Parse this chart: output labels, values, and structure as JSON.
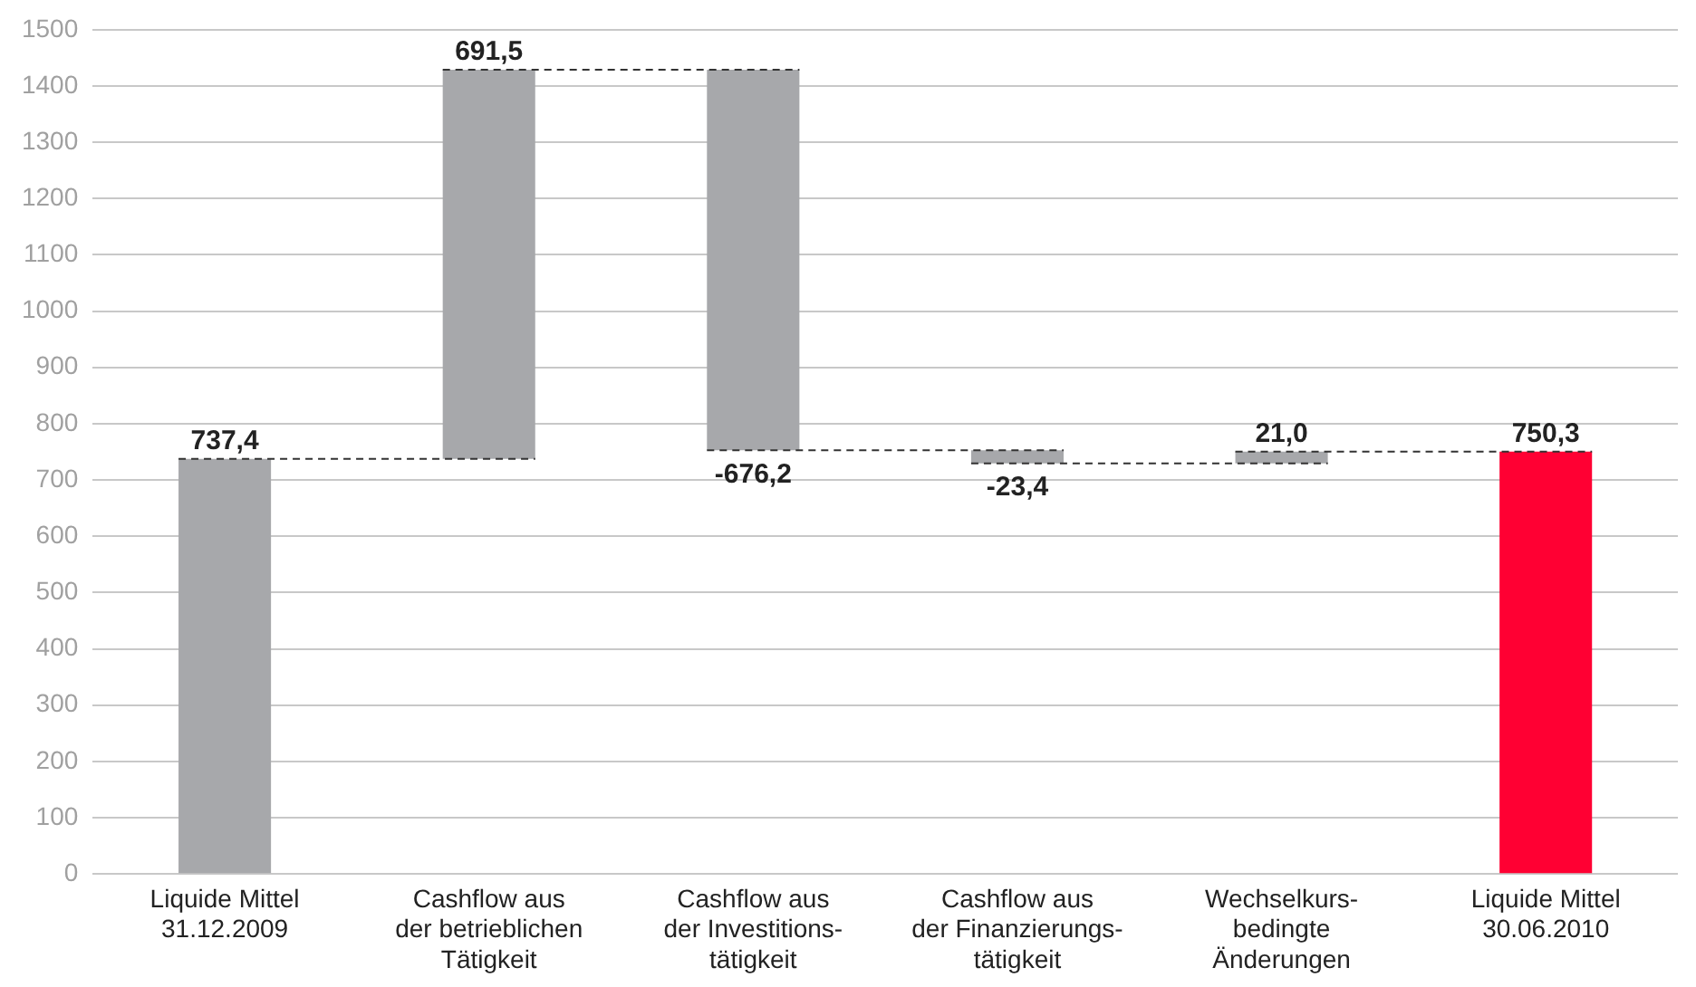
{
  "chart_data": {
    "type": "bar",
    "categories": [
      "Liquide Mittel\n31.12.2009",
      "Cashflow aus\nder betrieblichen\nTätigkeit",
      "Cashflow aus\nder Investitions-\ntätigkeit",
      "Cashflow aus\nder Finanzierungs-\ntätigkeit",
      "Wechselkurs-\nbedingte\nÄnderungen",
      "Liquide Mittel\n30.06.2010"
    ],
    "values": [
      737.4,
      691.5,
      -676.2,
      -23.4,
      21.0,
      750.3
    ],
    "base": [
      0,
      737.4,
      1428.9,
      752.7,
      729.3,
      0
    ],
    "colors": [
      "#a7a8ab",
      "#a7a8ab",
      "#a7a8ab",
      "#a7a8ab",
      "#a7a8ab",
      "#ff0033"
    ],
    "value_labels": [
      "737,4",
      "691,5",
      "-676,2",
      "-23,4",
      "21,0",
      "750,3"
    ],
    "ylim": [
      0,
      1500
    ],
    "yticks": [
      0,
      100,
      200,
      300,
      400,
      500,
      600,
      700,
      800,
      900,
      1000,
      1100,
      1200,
      1300,
      1400,
      1500
    ],
    "grid": "y",
    "legend": false
  }
}
